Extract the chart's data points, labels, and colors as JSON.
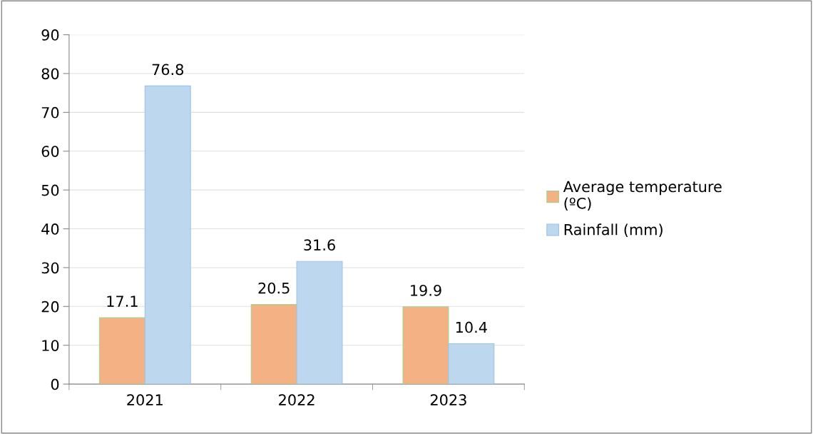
{
  "chart_data": {
    "type": "bar",
    "categories": [
      "2021",
      "2022",
      "2023"
    ],
    "series": [
      {
        "name": "Average temperature (ºC)",
        "color": "#f4b183",
        "values": [
          17.1,
          20.5,
          19.9
        ]
      },
      {
        "name": "Rainfall (mm)",
        "color": "#bdd7ee",
        "values": [
          76.8,
          31.6,
          10.4
        ]
      }
    ],
    "ylim": [
      0,
      90
    ],
    "yticks": [
      0,
      10,
      20,
      30,
      40,
      50,
      60,
      70,
      80,
      90
    ],
    "grid": "y",
    "legend": "right",
    "data_labels": true
  }
}
